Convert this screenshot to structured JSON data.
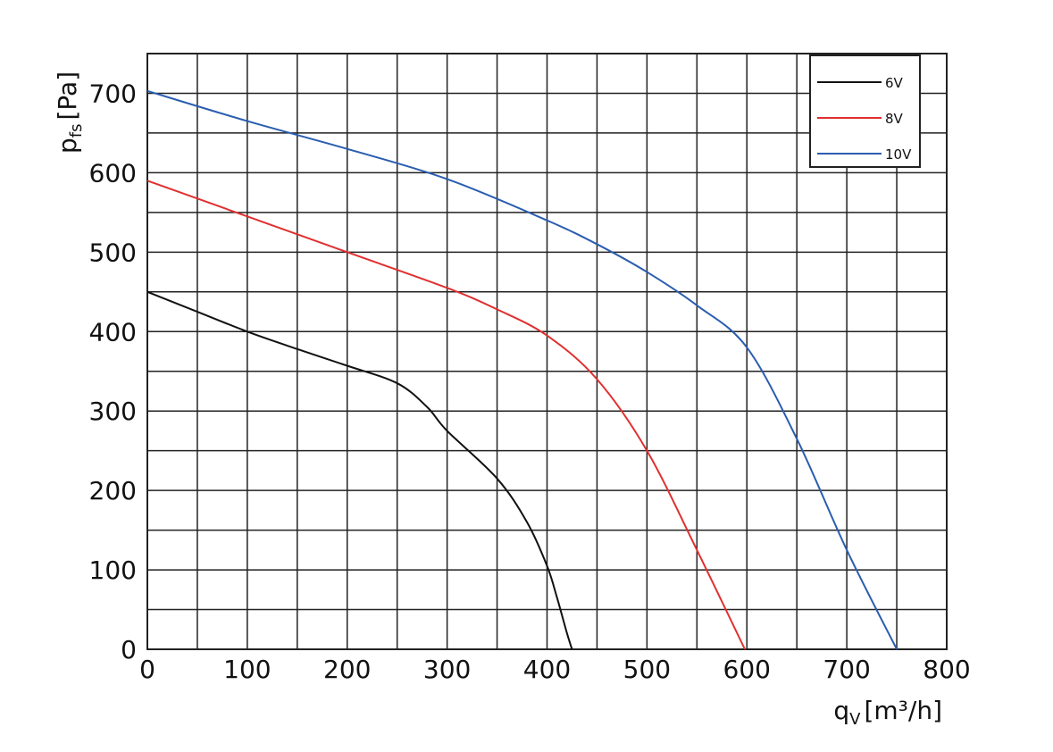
{
  "chart_data": {
    "type": "line",
    "xlabel": "q",
    "xlabel_sub": "V",
    "xlabel_unit": "[m³/h]",
    "ylabel": "p",
    "ylabel_sub": "fs",
    "ylabel_unit": "[Pa]",
    "xlim": [
      0,
      800
    ],
    "ylim": [
      0,
      750
    ],
    "xticks": [
      0,
      100,
      200,
      300,
      400,
      500,
      600,
      700,
      800
    ],
    "yticks": [
      0,
      100,
      200,
      300,
      400,
      500,
      600,
      700
    ],
    "x_minor_ticks": [
      50,
      150,
      250,
      350,
      450,
      550,
      650,
      750
    ],
    "y_minor_ticks": [
      50,
      150,
      250,
      350,
      450,
      550,
      650,
      750
    ],
    "grid": true,
    "legend": "upper right",
    "series": [
      {
        "name": "6V",
        "color": "#111111",
        "x": [
          0,
          50,
          100,
          150,
          200,
          250,
          280,
          300,
          350,
          380,
          400,
          410,
          420,
          425
        ],
        "values": [
          450,
          425,
          400,
          378,
          357,
          335,
          305,
          275,
          215,
          160,
          105,
          65,
          20,
          0
        ]
      },
      {
        "name": "8V",
        "color": "#e03030",
        "x": [
          0,
          100,
          200,
          300,
          350,
          400,
          450,
          500,
          550,
          598
        ],
        "values": [
          590,
          545,
          500,
          455,
          428,
          395,
          340,
          250,
          125,
          0
        ]
      },
      {
        "name": "10V",
        "color": "#2a5db0",
        "x": [
          0,
          100,
          200,
          300,
          400,
          450,
          500,
          550,
          600,
          650,
          700,
          750
        ],
        "values": [
          703,
          665,
          630,
          592,
          540,
          510,
          475,
          433,
          380,
          265,
          125,
          0
        ]
      }
    ]
  }
}
